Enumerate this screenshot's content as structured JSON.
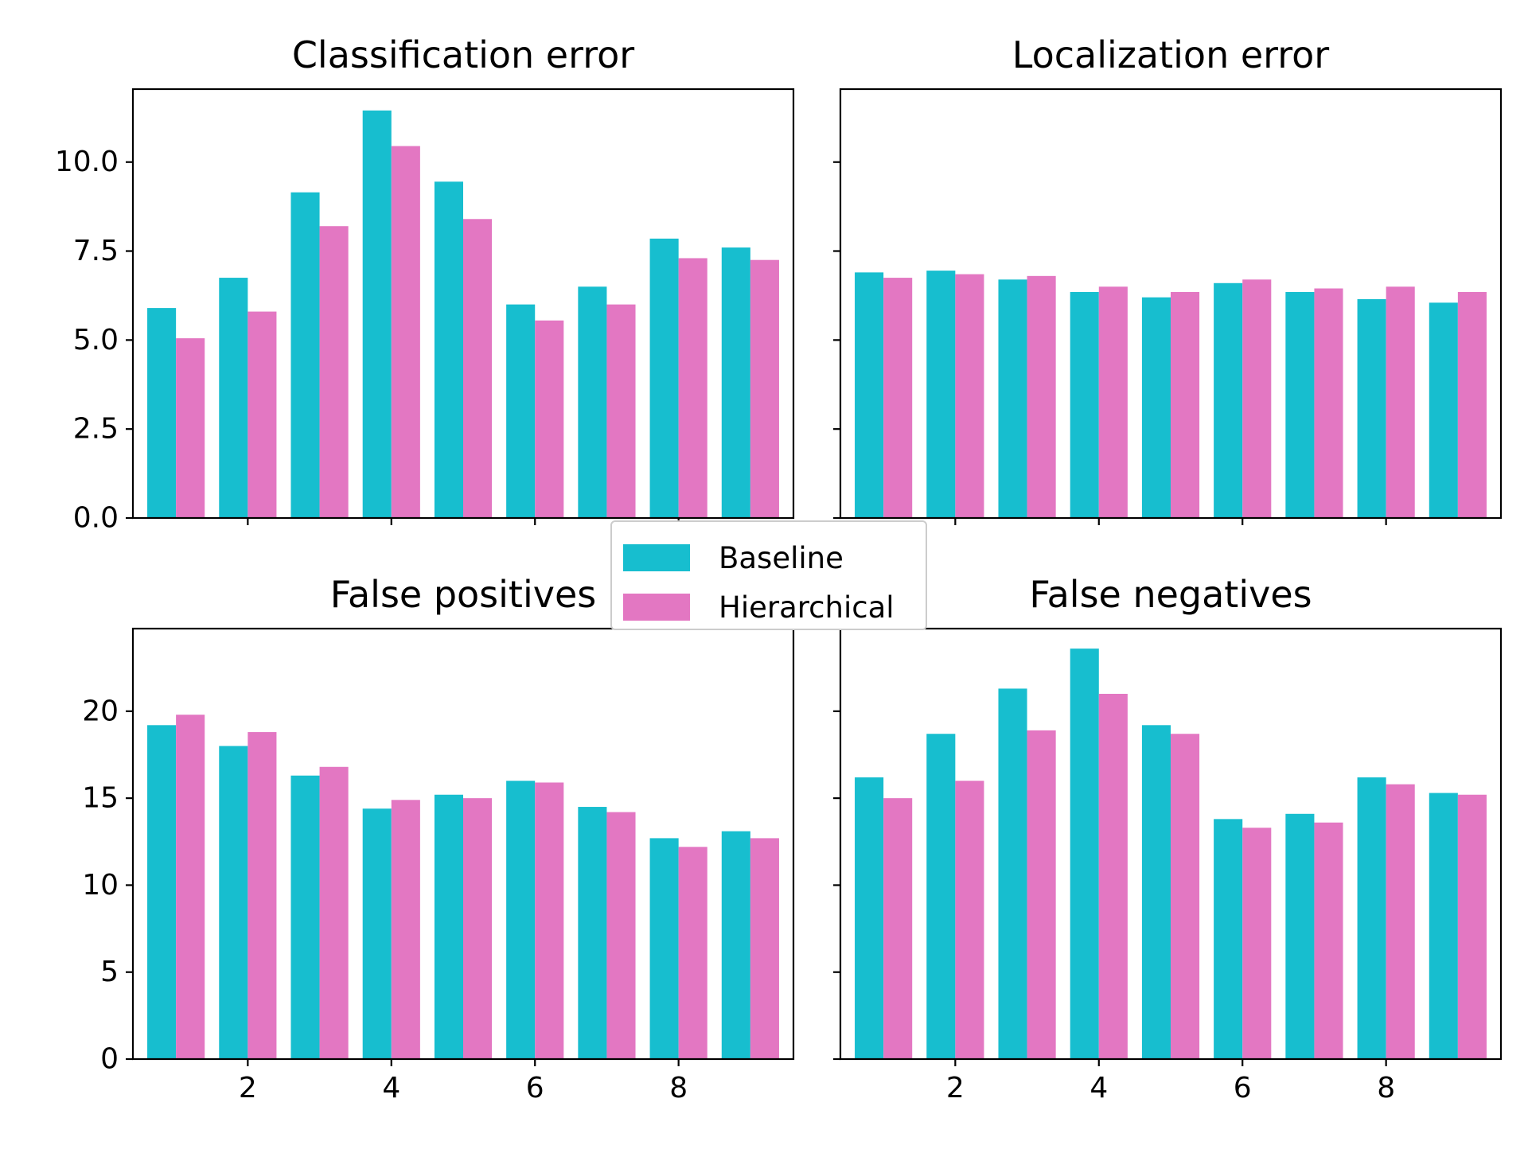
{
  "colors": {
    "baseline": "#17becf",
    "hierarchical": "#e377c2"
  },
  "legend": {
    "baseline_label": "Baseline",
    "hierarchical_label": "Hierarchical"
  },
  "chart_data": [
    {
      "type": "bar",
      "title": "Classification error",
      "x": [
        1,
        2,
        3,
        4,
        5,
        6,
        7,
        8,
        9
      ],
      "series": [
        {
          "name": "Baseline",
          "values": [
            5.9,
            6.75,
            9.15,
            11.45,
            9.45,
            6.0,
            6.5,
            7.85,
            7.6
          ]
        },
        {
          "name": "Hierarchical",
          "values": [
            5.05,
            5.8,
            8.2,
            10.45,
            8.4,
            5.55,
            6.0,
            7.3,
            7.25
          ]
        }
      ],
      "ylim": [
        0,
        12.05
      ],
      "yticks": [
        0.0,
        2.5,
        5.0,
        7.5,
        10.0
      ],
      "ytick_labels": [
        "0.0",
        "2.5",
        "5.0",
        "7.5",
        "10.0"
      ],
      "xticks": [
        2,
        4,
        6,
        8
      ],
      "xtick_labels": [],
      "grid": false
    },
    {
      "type": "bar",
      "title": "Localization error",
      "x": [
        1,
        2,
        3,
        4,
        5,
        6,
        7,
        8,
        9
      ],
      "series": [
        {
          "name": "Baseline",
          "values": [
            6.9,
            6.95,
            6.7,
            6.35,
            6.2,
            6.6,
            6.35,
            6.15,
            6.05
          ]
        },
        {
          "name": "Hierarchical",
          "values": [
            6.75,
            6.85,
            6.8,
            6.5,
            6.35,
            6.7,
            6.45,
            6.5,
            6.35
          ]
        }
      ],
      "ylim": [
        0,
        12.05
      ],
      "yticks": [
        0.0,
        2.5,
        5.0,
        7.5,
        10.0
      ],
      "ytick_labels": [],
      "xticks": [
        2,
        4,
        6,
        8
      ],
      "xtick_labels": [],
      "grid": false
    },
    {
      "type": "bar",
      "title": "False positives",
      "x": [
        1,
        2,
        3,
        4,
        5,
        6,
        7,
        8,
        9
      ],
      "series": [
        {
          "name": "Baseline",
          "values": [
            19.2,
            18.0,
            16.3,
            14.4,
            15.2,
            16.0,
            14.5,
            12.7,
            13.1
          ]
        },
        {
          "name": "Hierarchical",
          "values": [
            19.8,
            18.8,
            16.8,
            14.9,
            15.0,
            15.9,
            14.2,
            12.2,
            12.7
          ]
        }
      ],
      "ylim": [
        0,
        24.75
      ],
      "yticks": [
        0,
        5,
        10,
        15,
        20
      ],
      "ytick_labels": [
        "0",
        "5",
        "10",
        "15",
        "20"
      ],
      "xticks": [
        2,
        4,
        6,
        8
      ],
      "xtick_labels": [
        "2",
        "4",
        "6",
        "8"
      ],
      "grid": false
    },
    {
      "type": "bar",
      "title": "False negatives",
      "x": [
        1,
        2,
        3,
        4,
        5,
        6,
        7,
        8,
        9
      ],
      "series": [
        {
          "name": "Baseline",
          "values": [
            16.2,
            18.7,
            21.3,
            23.6,
            19.2,
            13.8,
            14.1,
            16.2,
            15.3
          ]
        },
        {
          "name": "Hierarchical",
          "values": [
            15.0,
            16.0,
            18.9,
            21.0,
            18.7,
            13.3,
            13.6,
            15.8,
            15.2
          ]
        }
      ],
      "ylim": [
        0,
        24.75
      ],
      "yticks": [
        0,
        5,
        10,
        15,
        20
      ],
      "ytick_labels": [],
      "xticks": [
        2,
        4,
        6,
        8
      ],
      "xtick_labels": [
        "2",
        "4",
        "6",
        "8"
      ],
      "grid": false
    }
  ]
}
